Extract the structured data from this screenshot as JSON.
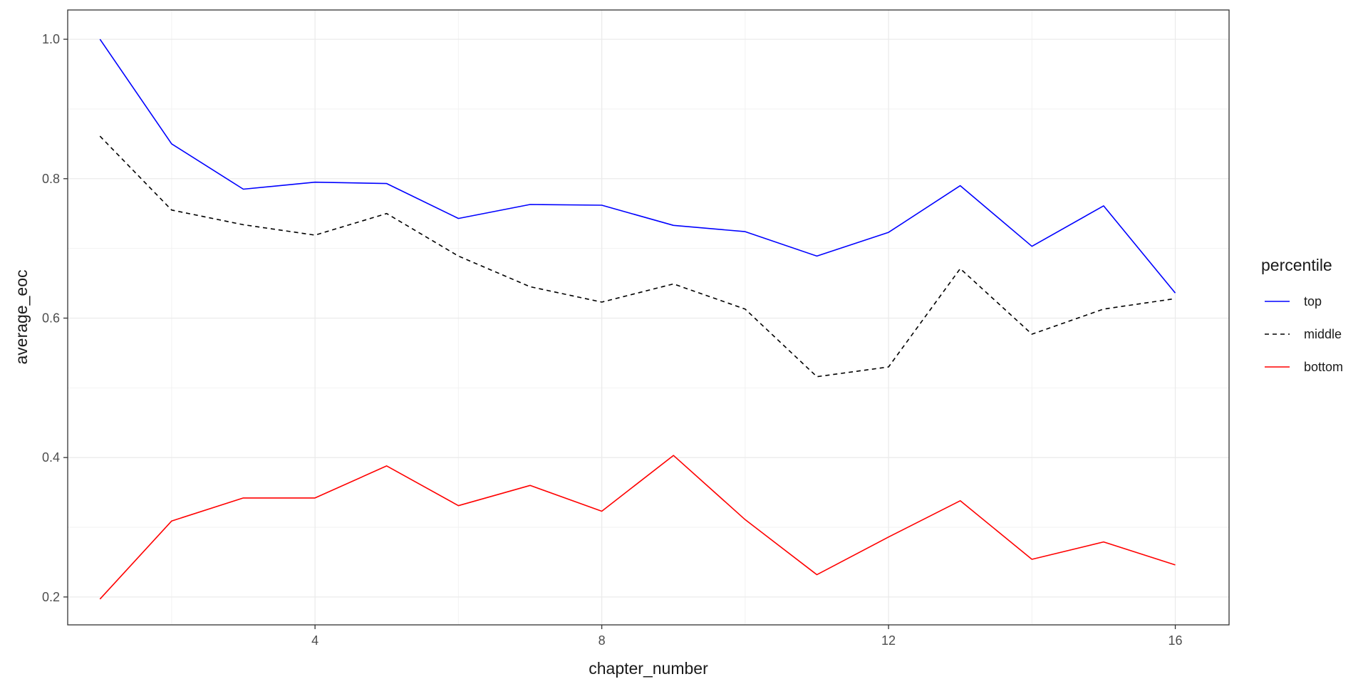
{
  "chart_data": {
    "type": "line",
    "xlabel": "chapter_number",
    "ylabel": "average_eoc",
    "xlim": [
      0.55,
      16.75
    ],
    "ylim": [
      0.16,
      1.042
    ],
    "x_ticks": [
      4,
      8,
      12,
      16
    ],
    "x_tick_labels": [
      "4",
      "8",
      "12",
      "16"
    ],
    "y_ticks": [
      0.2,
      0.4,
      0.6,
      0.8,
      1.0
    ],
    "y_tick_labels": [
      "0.2",
      "0.4",
      "0.6",
      "0.8",
      "1.0"
    ],
    "grid": true,
    "legend": {
      "title": "percentile",
      "position": "right"
    },
    "x": [
      1,
      2,
      3,
      4,
      5,
      6,
      7,
      8,
      9,
      10,
      11,
      12,
      13,
      14,
      15,
      16
    ],
    "series": [
      {
        "name": "top",
        "color": "#0000ff",
        "dash": "solid",
        "values": [
          1.0,
          0.85,
          0.785,
          0.795,
          0.793,
          0.743,
          0.763,
          0.762,
          0.733,
          0.724,
          0.689,
          0.723,
          0.79,
          0.703,
          0.761,
          0.636
        ]
      },
      {
        "name": "middle",
        "color": "#000000",
        "dash": "dashed",
        "values": [
          0.861,
          0.755,
          0.734,
          0.719,
          0.75,
          0.689,
          0.645,
          0.623,
          0.649,
          0.613,
          0.516,
          0.53,
          0.671,
          0.577,
          0.613,
          0.628
        ]
      },
      {
        "name": "bottom",
        "color": "#ff0000",
        "dash": "solid",
        "values": [
          0.197,
          0.309,
          0.342,
          0.342,
          0.388,
          0.331,
          0.36,
          0.323,
          0.403,
          0.311,
          0.232,
          0.286,
          0.338,
          0.254,
          0.279,
          0.246
        ]
      }
    ]
  }
}
